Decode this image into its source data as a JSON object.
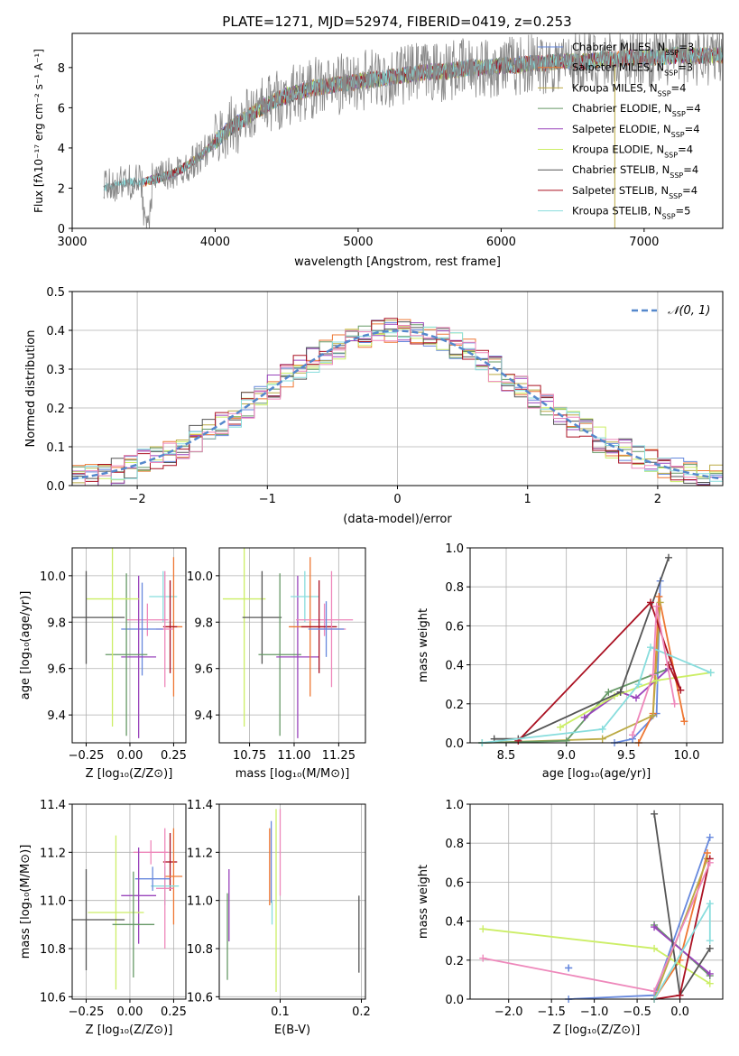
{
  "figure_title": "PLATE=1271, MJD=52974, FIBERID=0419, z=0.253",
  "colors": {
    "chabrier_miles": "#6688dd",
    "salpeter_miles": "#ee7733",
    "kroupa_miles": "#bbaa44",
    "chabrier_elodie": "#669966",
    "salpeter_elodie": "#9944bb",
    "kroupa_elodie": "#ccee66",
    "chabrier_stelib": "#555555",
    "salpeter_stelib": "#aa1122",
    "kroupa_stelib": "#88dddd",
    "pink": "#ee88bb",
    "gaussian": "#5588cc",
    "data_spectrum": "#888888",
    "grid": "#b0b0b0"
  },
  "chart_data": [
    {
      "id": "spectrum",
      "type": "line",
      "title": "PLATE=1271, MJD=52974, FIBERID=0419, z=0.253",
      "xlabel": "wavelength [Angstrom, rest frame]",
      "ylabel": "Flux [fλ10⁻¹⁷ erg cm⁻² s⁻¹ A⁻¹]",
      "xlim": [
        3000,
        7550
      ],
      "ylim": [
        0,
        9.7
      ],
      "xticks": [
        "3000",
        "4000",
        "5000",
        "6000",
        "7000"
      ],
      "yticks": [
        "0",
        "2",
        "4",
        "6",
        "8"
      ],
      "legend_position": "right",
      "legend": [
        {
          "label": "Chabrier MILES, N",
          "sub": "SSP",
          "eq": "=3",
          "color": "#6688dd"
        },
        {
          "label": "Salpeter MILES, N",
          "sub": "SSP",
          "eq": "=3",
          "color": "#ee7733"
        },
        {
          "label": "Kroupa MILES, N",
          "sub": "SSP",
          "eq": "=4",
          "color": "#bbaa44"
        },
        {
          "label": "Chabrier ELODIE, N",
          "sub": "SSP",
          "eq": "=4",
          "color": "#669966"
        },
        {
          "label": "Salpeter ELODIE, N",
          "sub": "SSP",
          "eq": "=4",
          "color": "#9944bb"
        },
        {
          "label": "Kroupa ELODIE, N",
          "sub": "SSP",
          "eq": "=4",
          "color": "#ccee66"
        },
        {
          "label": "Chabrier STELIB, N",
          "sub": "SSP",
          "eq": "=4",
          "color": "#555555"
        },
        {
          "label": "Salpeter STELIB, N",
          "sub": "SSP",
          "eq": "=4",
          "color": "#aa1122"
        },
        {
          "label": "Kroupa STELIB, N",
          "sub": "SSP",
          "eq": "=5",
          "color": "#88dddd"
        }
      ],
      "data_series": {
        "x": [
          3220,
          3300,
          3400,
          3500,
          3600,
          3700,
          3800,
          3900,
          4000,
          4100,
          4200,
          4300,
          4400,
          4500,
          4600,
          4700,
          4800,
          4900,
          5000,
          5100,
          5200,
          5300,
          5400,
          5500,
          5600,
          5700,
          5800,
          5900,
          6000,
          6100,
          6200,
          6300,
          6400,
          6500,
          6600,
          6700,
          6800,
          6900,
          7000,
          7100,
          7200,
          7300,
          7400,
          7500,
          7550
        ],
        "y": [
          2.0,
          2.2,
          2.3,
          2.3,
          2.5,
          2.7,
          3.1,
          3.6,
          4.3,
          5.0,
          5.4,
          5.9,
          6.3,
          6.6,
          6.8,
          7.0,
          7.1,
          7.2,
          7.3,
          7.4,
          7.5,
          7.6,
          7.7,
          7.8,
          7.8,
          7.9,
          8.0,
          8.0,
          8.1,
          8.1,
          8.2,
          8.2,
          8.3,
          8.3,
          8.3,
          8.4,
          8.4,
          8.5,
          8.5,
          8.5,
          8.6,
          8.6,
          8.6,
          8.6,
          8.6
        ]
      }
    },
    {
      "id": "residuals",
      "type": "bar",
      "xlabel": "(data-model)/error",
      "ylabel": "Normed distribution",
      "xlim": [
        -2.5,
        2.5
      ],
      "ylim": [
        0,
        0.5
      ],
      "xticks": [
        "−2",
        "−1",
        "0",
        "1",
        "2"
      ],
      "yticks": [
        "0.0",
        "0.1",
        "0.2",
        "0.3",
        "0.4",
        "0.5"
      ],
      "legend_position": "top-right",
      "legend": [
        {
          "label": "𝒩(0, 1)",
          "color": "#5588cc"
        }
      ],
      "bin_width": 0.1,
      "gaussian": {
        "mean": 0,
        "sigma": 1
      }
    },
    {
      "id": "age-vs-Z",
      "type": "scatter",
      "xlabel": "Z [log₁₀(Z/Z⊙)]",
      "ylabel": "age  [log₁₀(age/yr)]",
      "xlim": [
        -0.33,
        0.32
      ],
      "ylim": [
        9.28,
        10.12
      ],
      "xticks": [
        {
          "v": -0.25,
          "t": "−0.25"
        },
        {
          "v": 0.0,
          "t": "0.00"
        },
        {
          "v": 0.25,
          "t": "0.25"
        }
      ],
      "yticks": [
        {
          "v": 9.4,
          "t": "9.4"
        },
        {
          "v": 9.6,
          "t": "9.6"
        },
        {
          "v": 9.8,
          "t": "9.8"
        },
        {
          "v": 10.0,
          "t": "10.0"
        }
      ],
      "points": [
        {
          "x": 0.19,
          "y": 9.91,
          "xerr": 0.08,
          "yerr": 0.11,
          "color": "#88dddd"
        },
        {
          "x": 0.25,
          "y": 9.78,
          "xerr": 0.05,
          "yerr": 0.3,
          "color": "#ee7733"
        },
        {
          "x": 0.23,
          "y": 9.78,
          "xerr": 0.04,
          "yerr": 0.2,
          "color": "#aa1122"
        },
        {
          "x": 0.2,
          "y": 9.77,
          "xerr": 0.05,
          "yerr": 0.25,
          "color": "#ee88bb"
        },
        {
          "x": 0.1,
          "y": 9.81,
          "xerr": 0.12,
          "yerr": 0.07,
          "color": "#ee88bb"
        },
        {
          "x": 0.07,
          "y": 9.77,
          "xerr": 0.12,
          "yerr": 0.2,
          "color": "#6688dd"
        },
        {
          "x": 0.05,
          "y": 9.65,
          "xerr": 0.1,
          "yerr": 0.35,
          "color": "#9944bb"
        },
        {
          "x": -0.02,
          "y": 9.66,
          "xerr": 0.12,
          "yerr": 0.35,
          "color": "#669966"
        },
        {
          "x": -0.1,
          "y": 9.9,
          "xerr": 0.15,
          "yerr": 0.55,
          "color": "#ccee66"
        },
        {
          "x": -0.25,
          "y": 9.82,
          "xerr": 0.22,
          "yerr": 0.2,
          "color": "#555555"
        }
      ]
    },
    {
      "id": "age-vs-mass",
      "type": "scatter",
      "xlabel": "mass [log₁₀(M/M⊙)]",
      "ylabel": "",
      "xlim": [
        10.58,
        11.4
      ],
      "ylim": [
        9.28,
        10.12
      ],
      "xticks": [
        {
          "v": 10.75,
          "t": "10.75"
        },
        {
          "v": 11.0,
          "t": "11.00"
        },
        {
          "v": 11.25,
          "t": "11.25"
        }
      ],
      "yticks": [
        {
          "v": 9.4,
          "t": "9.4"
        },
        {
          "v": 9.6,
          "t": "9.6"
        },
        {
          "v": 9.8,
          "t": "9.8"
        },
        {
          "v": 10.0,
          "t": "10.0"
        }
      ],
      "points": [
        {
          "x": 10.72,
          "y": 9.9,
          "xerr": 0.12,
          "yerr": 0.55,
          "color": "#ccee66"
        },
        {
          "x": 10.82,
          "y": 9.82,
          "xerr": 0.11,
          "yerr": 0.2,
          "color": "#555555"
        },
        {
          "x": 10.92,
          "y": 9.66,
          "xerr": 0.12,
          "yerr": 0.35,
          "color": "#669966"
        },
        {
          "x": 11.02,
          "y": 9.65,
          "xerr": 0.12,
          "yerr": 0.35,
          "color": "#9944bb"
        },
        {
          "x": 11.06,
          "y": 9.91,
          "xerr": 0.08,
          "yerr": 0.11,
          "color": "#88dddd"
        },
        {
          "x": 11.09,
          "y": 9.78,
          "xerr": 0.12,
          "yerr": 0.3,
          "color": "#ee7733"
        },
        {
          "x": 11.17,
          "y": 9.81,
          "xerr": 0.16,
          "yerr": 0.07,
          "color": "#ee88bb"
        },
        {
          "x": 11.14,
          "y": 9.78,
          "xerr": 0.1,
          "yerr": 0.2,
          "color": "#aa1122"
        },
        {
          "x": 11.21,
          "y": 9.77,
          "xerr": 0.08,
          "yerr": 0.25,
          "color": "#ee88bb"
        },
        {
          "x": 11.18,
          "y": 9.77,
          "xerr": 0.1,
          "yerr": 0.12,
          "color": "#6688dd"
        }
      ]
    },
    {
      "id": "mass-weight-vs-age",
      "type": "line",
      "xlabel": "age  [log₁₀(age/yr)]",
      "ylabel": "mass weight",
      "xlim": [
        8.2,
        10.3
      ],
      "ylim": [
        0,
        1.0
      ],
      "xticks": [
        {
          "v": 8.5,
          "t": "8.5"
        },
        {
          "v": 9.0,
          "t": "9.0"
        },
        {
          "v": 9.5,
          "t": "9.5"
        },
        {
          "v": 10.0,
          "t": "10.0"
        }
      ],
      "yticks": [
        {
          "v": 0,
          "t": "0.0"
        },
        {
          "v": 0.2,
          "t": "0.2"
        },
        {
          "v": 0.4,
          "t": "0.4"
        },
        {
          "v": 0.6,
          "t": "0.6"
        },
        {
          "v": 0.8,
          "t": "0.8"
        },
        {
          "v": 1.0,
          "t": "1.0"
        }
      ],
      "series": [
        {
          "color": "#6688dd",
          "x": [
            9.4,
            9.55,
            9.75,
            9.78
          ],
          "y": [
            0.0,
            0.02,
            0.15,
            0.83
          ]
        },
        {
          "color": "#ee7733",
          "x": [
            9.6,
            9.72,
            9.77,
            9.98
          ],
          "y": [
            0.0,
            0.15,
            0.75,
            0.11
          ]
        },
        {
          "color": "#bbaa44",
          "x": [
            8.3,
            9.3,
            9.72,
            9.78
          ],
          "y": [
            0.0,
            0.02,
            0.14,
            0.72
          ]
        },
        {
          "color": "#669966",
          "x": [
            8.3,
            9.0,
            9.35,
            9.85
          ],
          "y": [
            0.0,
            0.01,
            0.26,
            0.38
          ]
        },
        {
          "color": "#9944bb",
          "x": [
            9.15,
            9.45,
            9.58,
            9.85
          ],
          "y": [
            0.13,
            0.26,
            0.23,
            0.38
          ]
        },
        {
          "color": "#ccee66",
          "x": [
            8.95,
            9.4,
            9.75,
            10.2
          ],
          "y": [
            0.08,
            0.24,
            0.32,
            0.36
          ]
        },
        {
          "color": "#555555",
          "x": [
            8.4,
            8.6,
            9.45,
            9.85
          ],
          "y": [
            0.02,
            0.02,
            0.26,
            0.95
          ]
        },
        {
          "color": "#aa1122",
          "x": [
            8.6,
            9.7,
            9.95,
            9.85
          ],
          "y": [
            0.01,
            0.72,
            0.27,
            0.4
          ]
        },
        {
          "color": "#88dddd",
          "x": [
            8.3,
            9.3,
            9.6,
            9.7,
            10.2
          ],
          "y": [
            0.0,
            0.07,
            0.3,
            0.49,
            0.36
          ]
        },
        {
          "color": "#ee88bb",
          "x": [
            9.55,
            9.72,
            9.75,
            9.9
          ],
          "y": [
            0.04,
            0.35,
            0.7,
            0.2
          ]
        }
      ]
    },
    {
      "id": "mass-vs-Z",
      "type": "scatter",
      "xlabel": "Z [log₁₀(Z/Z⊙)]",
      "ylabel": "mass [log₁₀(M/M⊙)]",
      "xlim": [
        -0.33,
        0.32
      ],
      "ylim": [
        10.59,
        11.4
      ],
      "xticks": [
        {
          "v": -0.25,
          "t": "−0.25"
        },
        {
          "v": 0.0,
          "t": "0.00"
        },
        {
          "v": 0.25,
          "t": "0.25"
        }
      ],
      "yticks": [
        {
          "v": 10.6,
          "t": "10.6"
        },
        {
          "v": 10.8,
          "t": "10.8"
        },
        {
          "v": 11.0,
          "t": "11.0"
        },
        {
          "v": 11.2,
          "t": "11.2"
        },
        {
          "v": 11.4,
          "t": "11.4"
        }
      ],
      "points": [
        {
          "x": 0.23,
          "y": 11.16,
          "xerr": 0.04,
          "yerr": 0.12,
          "color": "#aa1122"
        },
        {
          "x": 0.12,
          "y": 11.2,
          "xerr": 0.1,
          "yerr": 0.05,
          "color": "#ee88bb"
        },
        {
          "x": 0.25,
          "y": 11.1,
          "xerr": 0.05,
          "yerr": 0.2,
          "color": "#ee7733"
        },
        {
          "x": 0.2,
          "y": 11.06,
          "xerr": 0.08,
          "yerr": 0.08,
          "color": "#88dddd"
        },
        {
          "x": 0.2,
          "y": 11.05,
          "xerr": 0.05,
          "yerr": 0.25,
          "color": "#ee88bb"
        },
        {
          "x": 0.13,
          "y": 11.09,
          "xerr": 0.1,
          "yerr": 0.05,
          "color": "#6688dd"
        },
        {
          "x": 0.05,
          "y": 11.02,
          "xerr": 0.1,
          "yerr": 0.2,
          "color": "#9944bb"
        },
        {
          "x": -0.08,
          "y": 10.95,
          "xerr": 0.16,
          "yerr": 0.32,
          "color": "#ccee66"
        },
        {
          "x": 0.02,
          "y": 10.9,
          "xerr": 0.12,
          "yerr": 0.22,
          "color": "#669966"
        },
        {
          "x": -0.25,
          "y": 10.92,
          "xerr": 0.22,
          "yerr": 0.21,
          "color": "#555555"
        }
      ]
    },
    {
      "id": "mass-vs-ebv",
      "type": "scatter",
      "xlabel": "E(B-V)",
      "ylabel": "",
      "xlim": [
        0.025,
        0.205
      ],
      "ylim": [
        10.59,
        11.4
      ],
      "xticks": [
        {
          "v": 0.1,
          "t": "0.1"
        },
        {
          "v": 0.2,
          "t": "0.2"
        }
      ],
      "yticks": [
        {
          "v": 10.6,
          "t": "10.6"
        },
        {
          "v": 10.8,
          "t": "10.8"
        },
        {
          "v": 11.0,
          "t": "11.0"
        },
        {
          "v": 11.2,
          "t": "11.2"
        },
        {
          "v": 11.4,
          "t": "11.4"
        }
      ],
      "points": [
        {
          "x": 0.035,
          "y": 10.85,
          "xerr": 0.0,
          "yerr": 0.18,
          "color": "#669966"
        },
        {
          "x": 0.037,
          "y": 10.98,
          "xerr": 0.0,
          "yerr": 0.15,
          "color": "#9944bb"
        },
        {
          "x": 0.087,
          "y": 11.14,
          "xerr": 0.0,
          "yerr": 0.16,
          "color": "#ee7733"
        },
        {
          "x": 0.089,
          "y": 11.16,
          "xerr": 0.0,
          "yerr": 0.17,
          "color": "#6688dd"
        },
        {
          "x": 0.09,
          "y": 10.95,
          "xerr": 0.0,
          "yerr": 0.05,
          "color": "#88dddd"
        },
        {
          "x": 0.095,
          "y": 11.0,
          "xerr": 0.0,
          "yerr": 0.38,
          "color": "#ccee66"
        },
        {
          "x": 0.1,
          "y": 11.2,
          "xerr": 0.0,
          "yerr": 0.18,
          "color": "#ee88bb"
        },
        {
          "x": 0.197,
          "y": 10.86,
          "xerr": 0.0,
          "yerr": 0.16,
          "color": "#555555"
        }
      ]
    },
    {
      "id": "mass-weight-vs-Z",
      "type": "line",
      "xlabel": "Z [log₁₀(Z/Z⊙)]",
      "ylabel": "mass weight",
      "xlim": [
        -2.45,
        0.5
      ],
      "ylim": [
        0,
        1.0
      ],
      "xticks": [
        {
          "v": -2.0,
          "t": "−2.0"
        },
        {
          "v": -1.5,
          "t": "−1.5"
        },
        {
          "v": -1.0,
          "t": "−1.0"
        },
        {
          "v": -0.5,
          "t": "−0.5"
        },
        {
          "v": 0.0,
          "t": "0.0"
        }
      ],
      "yticks": [
        {
          "v": 0,
          "t": "0.0"
        },
        {
          "v": 0.2,
          "t": "0.2"
        },
        {
          "v": 0.4,
          "t": "0.4"
        },
        {
          "v": 0.6,
          "t": "0.6"
        },
        {
          "v": 0.8,
          "t": "0.8"
        },
        {
          "v": 1.0,
          "t": "1.0"
        }
      ],
      "series": [
        {
          "color": "#6688dd",
          "x": [
            -1.3,
            -0.3,
            0.35
          ],
          "y": [
            0.0,
            0.02,
            0.83
          ]
        },
        {
          "color": "#ee7733",
          "x": [
            -0.3,
            0.0,
            0.32
          ],
          "y": [
            0.0,
            0.2,
            0.75
          ]
        },
        {
          "color": "#bbaa44",
          "x": [
            -0.3,
            0.32
          ],
          "y": [
            0.0,
            0.72
          ]
        },
        {
          "color": "#669966",
          "x": [
            -0.3,
            0.35
          ],
          "y": [
            0.38,
            0.12
          ]
        },
        {
          "color": "#9944bb",
          "x": [
            -0.3,
            0.35
          ],
          "y": [
            0.37,
            0.13
          ]
        },
        {
          "color": "#ccee66",
          "x": [
            -2.3,
            -0.3,
            0.35
          ],
          "y": [
            0.36,
            0.26,
            0.08
          ]
        },
        {
          "color": "#555555",
          "x": [
            -0.3,
            0.0,
            0.35
          ],
          "y": [
            0.95,
            0.02,
            0.26
          ]
        },
        {
          "color": "#aa1122",
          "x": [
            -0.3,
            0.0,
            0.35
          ],
          "y": [
            0.0,
            0.02,
            0.72
          ]
        },
        {
          "color": "#88dddd",
          "x": [
            -0.3,
            0.35,
            0.35
          ],
          "y": [
            0.0,
            0.49,
            0.3
          ]
        },
        {
          "color": "#ee88bb",
          "x": [
            -2.3,
            -0.3,
            0.35
          ],
          "y": [
            0.21,
            0.04,
            0.7
          ]
        },
        {
          "color": "#6688dd",
          "x": [
            -1.3,
            -1.3
          ],
          "y": [
            0.16,
            0.16
          ]
        }
      ]
    }
  ]
}
